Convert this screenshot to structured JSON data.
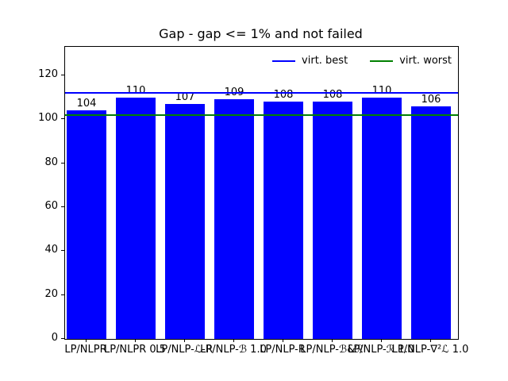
{
  "chart_data": {
    "type": "bar",
    "title": "Gap - gap <= 1% and not failed",
    "categories": [
      "LP/NLPR",
      "LP/NLPR 0.5",
      "LP/NLP-ℒ-R",
      "LP/NLP-ℬ 1.0",
      "LP/NLP-R",
      "LP/NLP-ℬ&ℛ",
      "LP/NLP-ℛ 1.0",
      "LP/NLP-∇²ℒ 1.0"
    ],
    "values": [
      104,
      110,
      107,
      109,
      108,
      108,
      110,
      106
    ],
    "bar_labels": [
      "104",
      "110",
      "107",
      "109",
      "108",
      "108",
      "110",
      "106"
    ],
    "bar_color": "#0000ff",
    "xlabel": "",
    "ylabel": "",
    "ylim": [
      0,
      133
    ],
    "yticks": [
      0,
      20,
      40,
      60,
      80,
      100,
      120
    ],
    "grid": false,
    "legend_position": "upper right, horizontal, frameless",
    "reference_lines": [
      {
        "name": "virt. best",
        "value": 112,
        "color": "#0000ff"
      },
      {
        "name": "virt. worst",
        "value": 102,
        "color": "#008000"
      }
    ]
  }
}
